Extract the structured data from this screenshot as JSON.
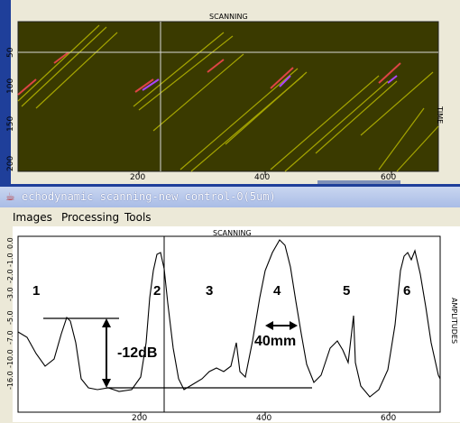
{
  "top_panel": {
    "title": "SCANNING",
    "right_label": "TIME",
    "y_ticks": [
      "50",
      "100",
      "150",
      "200"
    ],
    "x_ticks": [
      "200",
      "400",
      "600"
    ],
    "bg_color": "#3a3a00"
  },
  "window": {
    "title": "echodynamic scanning-new control-0(5um)",
    "icon": "java-cup-icon"
  },
  "menu": {
    "items": [
      "Images",
      "Processing",
      "Tools"
    ]
  },
  "bottom_panel": {
    "title": "SCANNING",
    "right_label": "AMPLITUDES",
    "y_ticks": [
      "0.0",
      "-1.0",
      "-2.0",
      "-3.0",
      "-4.0",
      "-5.0",
      "-6.0",
      "-7.0",
      "-8.0",
      "-9.0",
      "-10.0",
      "-11.0",
      "-12.0",
      "-13.0",
      "-14.0",
      "-15.0",
      "-16.0"
    ],
    "x_ticks": [
      "200",
      "400",
      "600"
    ],
    "peak_labels": [
      "1",
      "2",
      "3",
      "4",
      "5",
      "6"
    ],
    "db_label": "-12dB",
    "width_label": "40mm"
  }
}
